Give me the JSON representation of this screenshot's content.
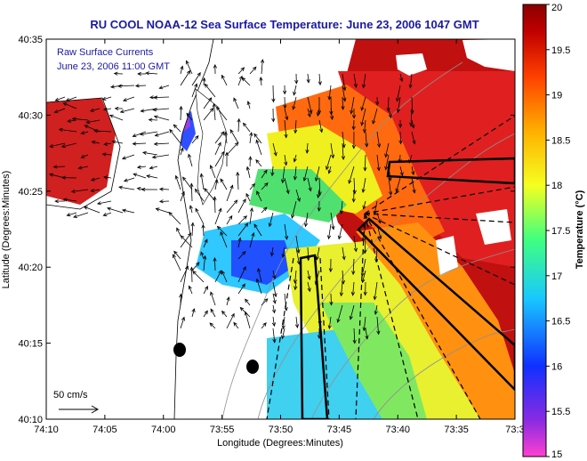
{
  "title": "RU COOL  NOAA-12  Sea Surface Temperature:  June 23, 2006 1047 GMT",
  "inset_label_1": "Raw Surface Currents",
  "inset_label_2": "June 23, 2006 11:00 GMT",
  "scale_label": "50 cm/s",
  "x_axis_label": "Longitude (Degrees:Minutes)",
  "y_axis_label": "Latitude (Degrees:Minutes)",
  "colorbar_label": "Temperature (°C)",
  "x_ticks": [
    "74:10",
    "74:05",
    "74:00",
    "73:55",
    "73:50",
    "73:45",
    "73:40",
    "73:35",
    "73:3"
  ],
  "y_ticks": [
    "40:35",
    "40:30",
    "40:25",
    "40:20",
    "40:15",
    "40:10"
  ],
  "colorbar_ticks": [
    "20",
    "19.5",
    "19",
    "18.5",
    "18",
    "17.5",
    "17",
    "16.5",
    "16",
    "15.5",
    "15"
  ],
  "colorbar": {
    "min": 15,
    "max": 20,
    "colors": [
      "#ff40d0",
      "#8a2be2",
      "#1030ff",
      "#19c8ff",
      "#40ff80",
      "#f5ff20",
      "#ffb000",
      "#ff4000",
      "#c00000",
      "#8a0000"
    ]
  },
  "colors": {
    "title": "#1a1aa0",
    "land": "#ffffff",
    "vector": "#000000"
  }
}
